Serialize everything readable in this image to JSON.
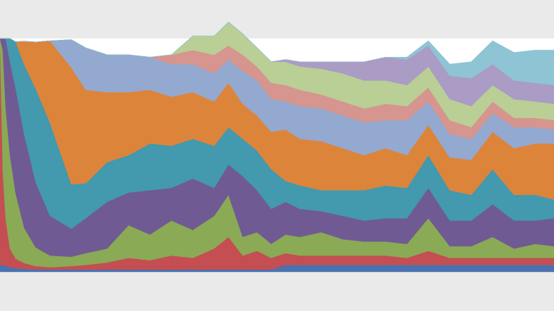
{
  "chart_data": {
    "type": "area",
    "stacked": true,
    "normalized": false,
    "title": "",
    "xlabel": "",
    "ylabel": "",
    "grid": false,
    "legend": "none",
    "x": [
      0,
      4,
      8,
      14,
      22,
      34,
      50,
      70,
      100,
      120,
      150,
      180,
      210,
      240,
      270,
      300,
      320,
      340,
      360,
      380,
      400,
      420,
      450,
      480,
      510,
      540,
      570,
      600,
      630,
      660,
      690,
      720,
      750,
      776
    ],
    "ylim": [
      0,
      100
    ],
    "series": [
      {
        "color": "#4a72b0",
        "values": [
          3.0,
          3.0,
          2.5,
          2.0,
          1.6,
          1.3,
          1.0,
          1.0,
          1.0,
          1.0,
          1.0,
          1.0,
          1.0,
          1.0,
          1.0,
          1.0,
          1.0,
          1.0,
          1.0,
          1.0,
          3.0,
          3.0,
          3.0,
          3.0,
          3.0,
          3.0,
          3.0,
          3.0,
          3.0,
          3.0,
          3.0,
          3.0,
          3.0,
          3.0
        ]
      },
      {
        "color": "#c44e52",
        "values": [
          97.0,
          40.0,
          20.0,
          8.0,
          4.0,
          2.5,
          1.5,
          1.0,
          1.5,
          2.0,
          3.0,
          5.0,
          4.0,
          6.0,
          5.0,
          9.0,
          14.0,
          6.0,
          8.0,
          5.0,
          5.0,
          4.0,
          4.0,
          4.0,
          4.0,
          4.0,
          3.0,
          6.0,
          3.0,
          3.0,
          3.0,
          3.0,
          3.0,
          3.0
        ]
      },
      {
        "color": "#8aaa55",
        "values": [
          0.0,
          52.0,
          48.0,
          40.0,
          28.0,
          15.0,
          8.0,
          5.0,
          4.0,
          5.0,
          6.0,
          14.0,
          11.0,
          15.0,
          12.0,
          14.0,
          18.0,
          8.0,
          8.0,
          6.0,
          8.0,
          8.0,
          10.0,
          7.0,
          6.0,
          6.0,
          6.0,
          14.0,
          5.0,
          5.0,
          9.0,
          4.0,
          6.0,
          5.0
        ]
      },
      {
        "color": "#705a94",
        "values": [
          0.0,
          5.0,
          29.5,
          40.0,
          45.0,
          40.0,
          28.0,
          17.0,
          12.0,
          15.0,
          20.0,
          14.0,
          19.0,
          14.0,
          22.0,
          12.0,
          13.0,
          26.0,
          18.0,
          15.0,
          14.0,
          12.0,
          9.0,
          10.0,
          9.0,
          10.0,
          11.0,
          13.0,
          11.0,
          11.0,
          14.0,
          12.0,
          10.0,
          12.0
        ]
      },
      {
        "color": "#4399ae",
        "values": [
          0.0,
          0.0,
          0.0,
          10.0,
          20.0,
          30.0,
          40.0,
          40.0,
          19.0,
          15.0,
          17.0,
          16.0,
          20.0,
          18.0,
          17.0,
          18.0,
          16.0,
          16.0,
          17.0,
          17.0,
          9.0,
          10.0,
          9.0,
          11.0,
          13.0,
          14.0,
          13.0,
          14.0,
          13.0,
          11.0,
          15.0,
          11.0,
          11.0,
          8.0
        ]
      },
      {
        "color": "#dd843b",
        "values": [
          0.0,
          0.0,
          0.0,
          0.0,
          0.0,
          10.0,
          20.0,
          35.0,
          50.0,
          40.0,
          30.0,
          27.0,
          23.0,
          21.0,
          20.0,
          19.0,
          19.0,
          15.0,
          15.0,
          16.0,
          22.0,
          20.0,
          21.0,
          18.0,
          15.0,
          16.0,
          14.0,
          13.0,
          14.0,
          15.0,
          16.0,
          20.0,
          22.0,
          24.0
        ]
      },
      {
        "color": "#93a9d0",
        "values": [
          0.0,
          0.0,
          0.0,
          0.0,
          0.0,
          0.0,
          0.0,
          0.0,
          12.0,
          18.0,
          16.0,
          16.0,
          14.0,
          14.0,
          12.0,
          12.0,
          10.0,
          14.0,
          15.0,
          14.0,
          12.0,
          14.0,
          14.0,
          14.0,
          14.0,
          12.0,
          15.0,
          10.0,
          10.0,
          9.0,
          8.0,
          9.0,
          7.0,
          6.0
        ]
      },
      {
        "color": "#d6958e",
        "values": [
          0.0,
          0.0,
          0.0,
          0.0,
          0.0,
          0.0,
          0.0,
          0.0,
          0.0,
          0.0,
          0.0,
          0.0,
          0.0,
          4.0,
          6.0,
          8.0,
          6.0,
          7.0,
          6.0,
          7.0,
          7.0,
          7.0,
          6.0,
          6.0,
          6.0,
          7.0,
          6.0,
          6.0,
          6.0,
          5.0,
          5.0,
          4.0,
          4.0,
          4.0
        ]
      },
      {
        "color": "#b9cf95",
        "values": [
          0.0,
          0.0,
          0.0,
          0.0,
          0.0,
          0.0,
          0.0,
          0.0,
          0.0,
          0.0,
          0.0,
          0.0,
          0.0,
          0.0,
          6.0,
          8.0,
          10.0,
          9.0,
          8.0,
          9.0,
          10.0,
          10.0,
          11.0,
          12.0,
          12.0,
          10.0,
          9.0,
          9.0,
          9.0,
          9.0,
          7.0,
          8.0,
          7.0,
          7.0
        ]
      },
      {
        "color": "#aa9cc4",
        "values": [
          0.0,
          0.0,
          0.0,
          0.0,
          0.0,
          0.0,
          0.0,
          0.0,
          0.0,
          0.0,
          0.0,
          0.0,
          0.0,
          0.0,
          0.0,
          0.0,
          0.0,
          0.0,
          0.0,
          0.0,
          1.0,
          2.0,
          3.0,
          5.0,
          8.0,
          10.0,
          11.0,
          9.0,
          10.0,
          12.0,
          9.0,
          8.0,
          8.0,
          8.0
        ]
      },
      {
        "color": "#8ec4d4",
        "values": [
          0.0,
          0.0,
          0.0,
          0.0,
          0.0,
          0.0,
          0.0,
          0.0,
          0.0,
          0.0,
          0.0,
          0.0,
          0.0,
          0.0,
          0.0,
          0.0,
          0.0,
          0.0,
          0.0,
          0.0,
          0.0,
          0.0,
          0.0,
          0.0,
          0.0,
          0.0,
          1.0,
          2.0,
          5.0,
          7.0,
          10.0,
          12.0,
          14.0,
          15.0
        ]
      }
    ]
  }
}
